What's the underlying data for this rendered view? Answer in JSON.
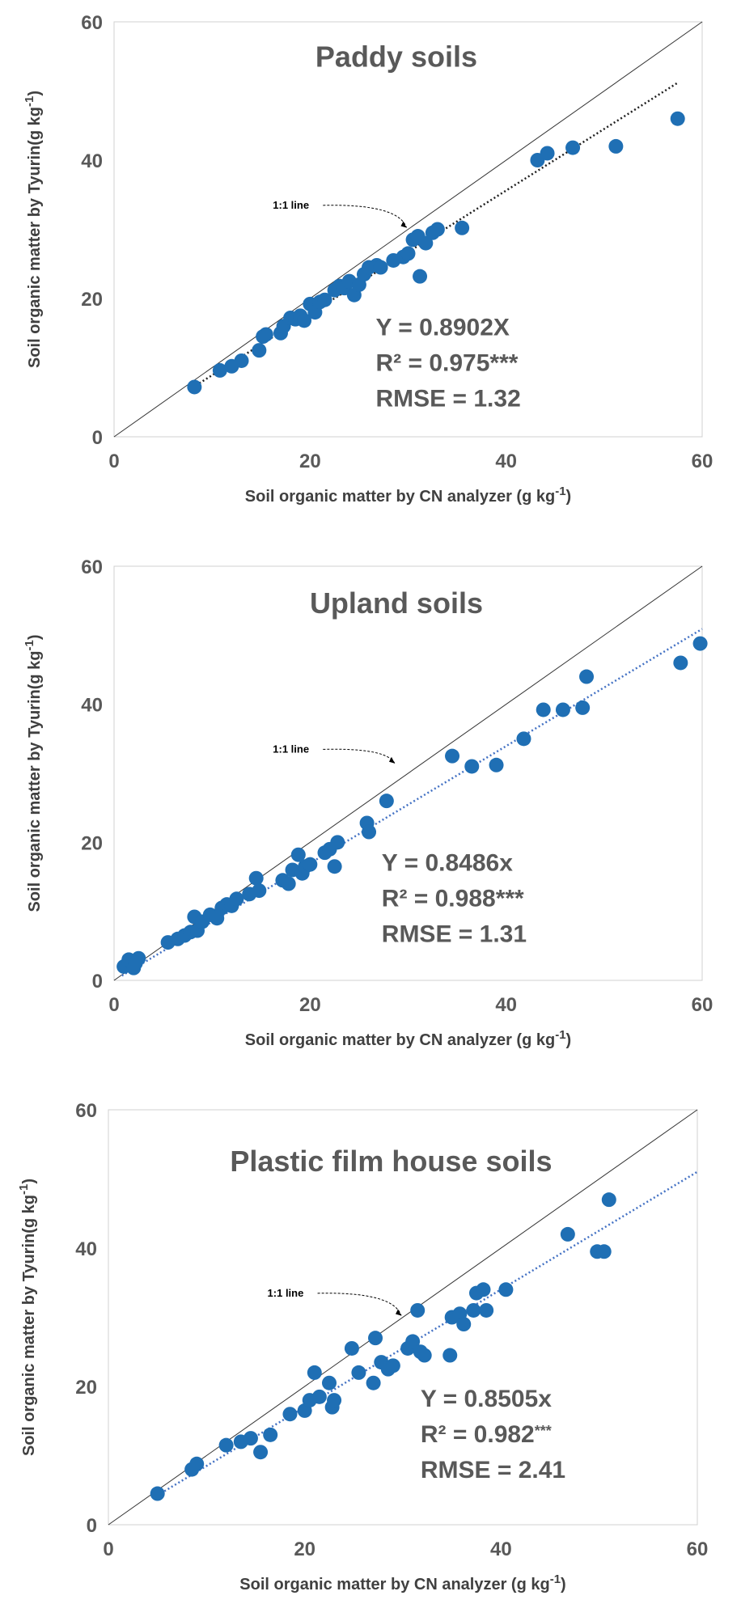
{
  "chart_data": [
    {
      "type": "scatter",
      "title": "Paddy soils",
      "xlabel": "Soil organic matter by CN analyzer",
      "xunit": "(g kg",
      "ylabel": "Soil organic matter by Tyurin(g kg",
      "unit_sup": "-1",
      "unit_close": ")",
      "xlim": [
        0,
        60
      ],
      "ylim": [
        0,
        60
      ],
      "xticks": [
        "0",
        "20",
        "40",
        "60"
      ],
      "yticks": [
        "0",
        "20",
        "40",
        "60"
      ],
      "one_to_one_label": "1:1  line",
      "eq_line": "Y = 0.8902X",
      "r2_prefix": "R² = 0.975",
      "r2_stars": "***",
      "rmse_line": "RMSE = 1.32",
      "slope": 0.8902,
      "trend_x_range": [
        8,
        57.5
      ],
      "trend_color": "#1f1f1f",
      "point_color": "#1f6fb4",
      "x": [
        8.2,
        10.8,
        12.0,
        13.0,
        14.8,
        15.2,
        15.5,
        17.0,
        17.3,
        18.0,
        18.5,
        19.0,
        19.4,
        20.0,
        20.5,
        21.0,
        21.5,
        22.5,
        23.0,
        23.5,
        24.0,
        24.5,
        25.0,
        25.5,
        26.0,
        26.8,
        27.2,
        28.5,
        29.5,
        30.0,
        30.5,
        31.0,
        31.2,
        31.8,
        32.5,
        33.0,
        35.5,
        43.2,
        44.2,
        46.8,
        51.2,
        57.5
      ],
      "y": [
        7.2,
        9.6,
        10.2,
        11.0,
        12.5,
        14.5,
        14.8,
        15.0,
        16.0,
        17.2,
        17.0,
        17.5,
        16.8,
        19.2,
        18.0,
        19.5,
        19.8,
        21.2,
        21.8,
        21.5,
        22.5,
        20.5,
        22.0,
        23.5,
        24.5,
        24.8,
        24.5,
        25.5,
        26.0,
        26.5,
        28.5,
        29.0,
        23.2,
        28.0,
        29.5,
        30.0,
        30.2,
        40.0,
        41.0,
        41.8,
        42.0,
        46.0
      ]
    },
    {
      "type": "scatter",
      "title": "Upland soils",
      "xlabel": "Soil organic matter by CN analyzer",
      "xunit": "(g kg",
      "ylabel": "Soil organic matter by Tyurin(g kg",
      "unit_sup": "-1",
      "unit_close": ")",
      "xlim": [
        0,
        60
      ],
      "ylim": [
        0,
        60
      ],
      "xticks": [
        "0",
        "20",
        "40",
        "60"
      ],
      "yticks": [
        "0",
        "20",
        "40",
        "60"
      ],
      "one_to_one_label": "1:1  line",
      "eq_line": "Y = 0.8486x",
      "r2_prefix": "R² = 0.988",
      "r2_stars": "***",
      "rmse_line": "RMSE = 1.31",
      "slope": 0.8486,
      "trend_x_range": [
        0.8,
        60
      ],
      "trend_color": "#4472c4",
      "point_color": "#1f6fb4",
      "x": [
        1.0,
        1.5,
        2.0,
        2.5,
        2.2,
        5.5,
        6.5,
        7.2,
        7.8,
        8.2,
        8.5,
        9.0,
        9.8,
        10.5,
        11.0,
        11.5,
        12.0,
        12.5,
        13.8,
        14.5,
        14.8,
        17.2,
        17.8,
        18.2,
        18.8,
        19.2,
        19.5,
        20.0,
        21.5,
        22.0,
        22.5,
        22.8,
        25.8,
        26.0,
        27.8,
        34.5,
        36.5,
        39.0,
        41.8,
        43.8,
        45.8,
        47.8,
        48.2,
        57.8,
        59.8
      ],
      "y": [
        2.0,
        3.0,
        1.8,
        3.2,
        2.5,
        5.5,
        6.0,
        6.5,
        7.0,
        9.2,
        7.2,
        8.5,
        9.5,
        9.0,
        10.5,
        11.0,
        10.8,
        11.8,
        12.5,
        14.8,
        13.0,
        14.5,
        14.0,
        16.0,
        18.2,
        15.5,
        16.5,
        16.8,
        18.5,
        19.0,
        16.5,
        20.0,
        22.8,
        21.5,
        26.0,
        32.5,
        31.0,
        31.2,
        35.0,
        39.2,
        39.2,
        39.5,
        44.0,
        46.0,
        48.8
      ]
    },
    {
      "type": "scatter",
      "title": "Plastic film house soils",
      "xlabel": "Soil organic matter by CN analyzer",
      "xunit": "(g kg",
      "ylabel": "Soil organic matter by Tyurin(g kg",
      "unit_sup": "-1",
      "unit_close": ")",
      "xlim": [
        0,
        60
      ],
      "ylim": [
        0,
        60
      ],
      "xticks": [
        "0",
        "20",
        "40",
        "60"
      ],
      "yticks": [
        "0",
        "20",
        "40",
        "60"
      ],
      "one_to_one_label": "1:1  line",
      "eq_line": "Y = 0.8505x",
      "r2_prefix": "R² = 0.982",
      "r2_stars": "***",
      "rmse_line": "RMSE = 2.41",
      "slope": 0.8505,
      "trend_x_range": [
        5,
        60
      ],
      "trend_color": "#4472c4",
      "point_color": "#1f6fb4",
      "x": [
        5.0,
        8.5,
        9.0,
        12.0,
        13.5,
        14.5,
        15.5,
        16.5,
        18.5,
        20.0,
        20.5,
        21.0,
        21.5,
        22.5,
        22.8,
        23.0,
        24.8,
        25.5,
        27.0,
        27.2,
        27.8,
        28.5,
        29.0,
        30.5,
        31.0,
        31.5,
        31.8,
        32.2,
        34.8,
        35.0,
        35.8,
        36.2,
        37.2,
        37.5,
        38.2,
        38.5,
        40.5,
        46.8,
        49.8,
        50.5,
        51.0
      ],
      "y": [
        4.5,
        8.0,
        8.8,
        11.5,
        12.0,
        12.5,
        10.5,
        13.0,
        16.0,
        16.5,
        18.0,
        22.0,
        18.5,
        20.5,
        17.0,
        18.0,
        25.5,
        22.0,
        20.5,
        27.0,
        23.5,
        22.5,
        23.0,
        25.5,
        26.5,
        31.0,
        25.0,
        24.5,
        24.5,
        30.0,
        30.5,
        29.0,
        31.0,
        33.5,
        34.0,
        31.0,
        34.0,
        42.0,
        39.5,
        39.5,
        47.0
      ]
    }
  ]
}
